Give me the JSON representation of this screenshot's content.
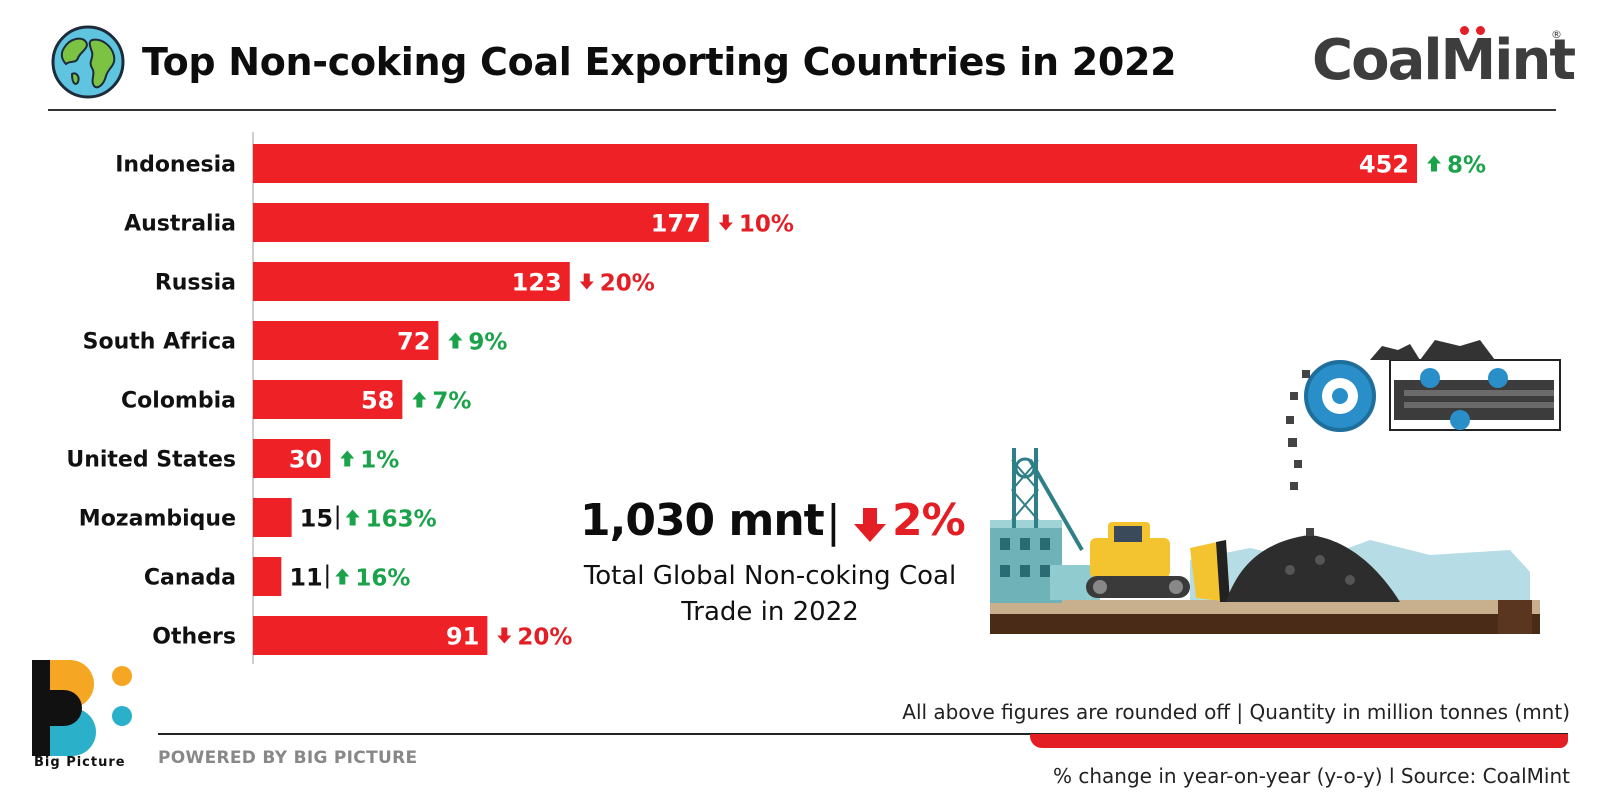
{
  "header": {
    "title": "Top Non-coking Coal Exporting Countries in 2022",
    "logo_text": "CoalMint",
    "logo_registered": "®",
    "globe_icon": "globe-icon"
  },
  "colors": {
    "bar": "#ed2126",
    "up": "#1aa34a",
    "down": "#e31e24",
    "text": "#111111"
  },
  "chart_data": {
    "type": "bar",
    "orientation": "horizontal",
    "title": "Top Non-coking Coal Exporting Countries in 2022",
    "unit": "mnt",
    "categories": [
      "Indonesia",
      "Australia",
      "Russia",
      "South Africa",
      "Colombia",
      "United States",
      "Mozambique",
      "Canada",
      "Others"
    ],
    "values": [
      452,
      177,
      123,
      72,
      58,
      30,
      15,
      11,
      91
    ],
    "change_labels": [
      "8%",
      "10%",
      "20%",
      "9%",
      "7%",
      "1%",
      "163%",
      "16%",
      "20%"
    ],
    "change_direction": [
      "up",
      "down",
      "down",
      "up",
      "up",
      "up",
      "up",
      "up",
      "down"
    ],
    "xlim": [
      0,
      452
    ],
    "grid": false,
    "legend": "none"
  },
  "summary": {
    "total": "1,030 mnt",
    "separator": "|",
    "change": "2%",
    "change_direction": "down",
    "label": "Total Global Non-coking Coal Trade in 2022"
  },
  "footer": {
    "brand": "Big Picture",
    "powered_by": "POWERED BY BIG PICTURE",
    "note_units": "All above figures are rounded off | Quantity in million tonnes (mnt)",
    "note_source": "% change in year-on-year (y-o-y)  l  Source: CoalMint"
  }
}
